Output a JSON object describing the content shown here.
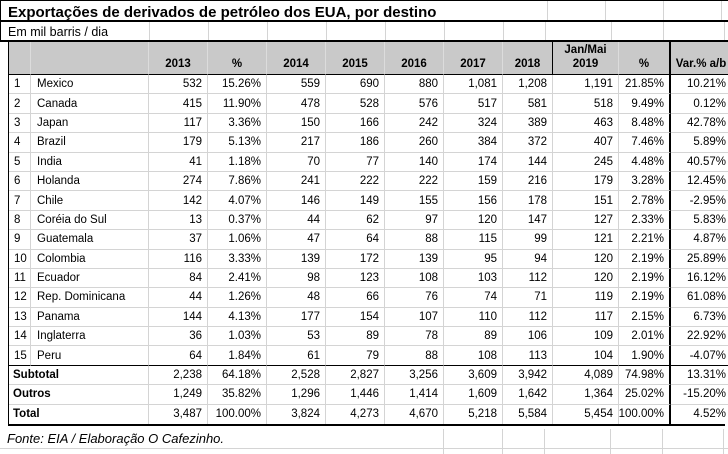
{
  "sheet": {
    "title": "Exportações de derivados de petróleo dos EUA, por destino",
    "subtitle": "Em mil barris / dia",
    "source_note": "Fonte: EIA / Elaboração O Cafezinho."
  },
  "colors": {
    "header_bg": "#c9c9c9",
    "gridline": "#d4d4d4",
    "border": "#000000",
    "text": "#000000"
  },
  "table": {
    "column_headers": [
      "2013",
      "%",
      "2014",
      "2015",
      "2016",
      "2017",
      "2018",
      "Jan/Mai 2019",
      "%",
      "Var.% a/b"
    ],
    "rows": [
      {
        "num": "1",
        "country": "Mexico",
        "values": [
          "532",
          "15.26%",
          "559",
          "690",
          "880",
          "1,081",
          "1,208",
          "1,191",
          "21.85%",
          "10.21%"
        ]
      },
      {
        "num": "2",
        "country": "Canada",
        "values": [
          "415",
          "11.90%",
          "478",
          "528",
          "576",
          "517",
          "581",
          "518",
          "9.49%",
          "0.12%"
        ]
      },
      {
        "num": "3",
        "country": "Japan",
        "values": [
          "117",
          "3.36%",
          "150",
          "166",
          "242",
          "324",
          "389",
          "463",
          "8.48%",
          "42.78%"
        ]
      },
      {
        "num": "4",
        "country": "Brazil",
        "values": [
          "179",
          "5.13%",
          "217",
          "186",
          "260",
          "384",
          "372",
          "407",
          "7.46%",
          "5.89%"
        ]
      },
      {
        "num": "5",
        "country": "India",
        "values": [
          "41",
          "1.18%",
          "70",
          "77",
          "140",
          "174",
          "144",
          "245",
          "4.48%",
          "40.57%"
        ]
      },
      {
        "num": "6",
        "country": "Holanda",
        "values": [
          "274",
          "7.86%",
          "241",
          "222",
          "222",
          "159",
          "216",
          "179",
          "3.28%",
          "12.45%"
        ]
      },
      {
        "num": "7",
        "country": "Chile",
        "values": [
          "142",
          "4.07%",
          "146",
          "149",
          "155",
          "156",
          "178",
          "151",
          "2.78%",
          "-2.95%"
        ]
      },
      {
        "num": "8",
        "country": "Coréia do Sul",
        "values": [
          "13",
          "0.37%",
          "44",
          "62",
          "97",
          "120",
          "147",
          "127",
          "2.33%",
          "5.83%"
        ]
      },
      {
        "num": "9",
        "country": "Guatemala",
        "values": [
          "37",
          "1.06%",
          "47",
          "64",
          "88",
          "115",
          "99",
          "121",
          "2.21%",
          "4.87%"
        ]
      },
      {
        "num": "10",
        "country": "Colombia",
        "values": [
          "116",
          "3.33%",
          "139",
          "172",
          "139",
          "95",
          "94",
          "120",
          "2.19%",
          "25.89%"
        ]
      },
      {
        "num": "11",
        "country": "Ecuador",
        "values": [
          "84",
          "2.41%",
          "98",
          "123",
          "108",
          "103",
          "112",
          "120",
          "2.19%",
          "16.12%"
        ]
      },
      {
        "num": "12",
        "country": "Rep. Dominicana",
        "values": [
          "44",
          "1.26%",
          "48",
          "66",
          "76",
          "74",
          "71",
          "119",
          "2.19%",
          "61.08%"
        ]
      },
      {
        "num": "13",
        "country": "Panama",
        "values": [
          "144",
          "4.13%",
          "177",
          "154",
          "107",
          "110",
          "112",
          "117",
          "2.15%",
          "6.73%"
        ]
      },
      {
        "num": "14",
        "country": "Inglaterra",
        "values": [
          "36",
          "1.03%",
          "53",
          "89",
          "78",
          "89",
          "106",
          "109",
          "2.01%",
          "22.92%"
        ]
      },
      {
        "num": "15",
        "country": "Peru",
        "values": [
          "64",
          "1.84%",
          "61",
          "79",
          "88",
          "108",
          "113",
          "104",
          "1.90%",
          "-4.07%"
        ]
      }
    ],
    "summary_rows": [
      {
        "label": "Subtotal",
        "values": [
          "2,238",
          "64.18%",
          "2,528",
          "2,827",
          "3,256",
          "3,609",
          "3,942",
          "4,089",
          "74.98%",
          "13.31%"
        ]
      },
      {
        "label": "Outros",
        "values": [
          "1,249",
          "35.82%",
          "1,296",
          "1,446",
          "1,414",
          "1,609",
          "1,642",
          "1,364",
          "25.02%",
          "-15.20%"
        ]
      },
      {
        "label": "Total",
        "values": [
          "3,487",
          "100.00%",
          "3,824",
          "4,273",
          "4,670",
          "5,218",
          "5,584",
          "5,454",
          "100.00%",
          "4.52%"
        ]
      }
    ]
  }
}
